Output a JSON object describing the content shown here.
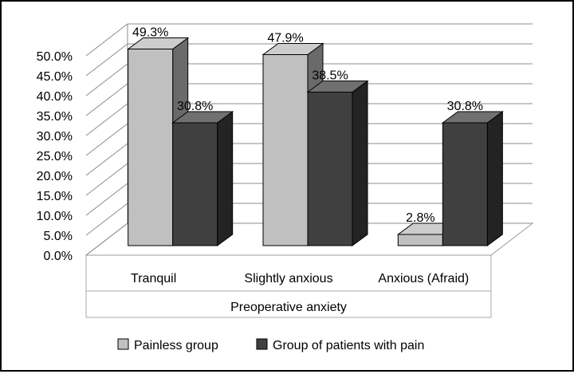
{
  "chart_data": {
    "type": "bar",
    "style": "3d-clustered-column",
    "categories": [
      "Tranquil",
      "Slightly anxious",
      "Anxious (Afraid)"
    ],
    "series": [
      {
        "name": "Painless group",
        "values": [
          49.3,
          47.9,
          2.8
        ],
        "labels": [
          "49.3%",
          "47.9%",
          "2.8%"
        ],
        "color": "#c0c0c0"
      },
      {
        "name": "Group of patients with pain",
        "values": [
          30.8,
          38.5,
          30.8
        ],
        "labels": [
          "30.8%",
          "38.5%",
          "30.8%"
        ],
        "color": "#404040"
      }
    ],
    "xlabel": "Preoperative anxiety",
    "ylabel": "",
    "ylim": [
      0,
      50
    ],
    "yticks": [
      "0.0%",
      "5.0%",
      "10.0%",
      "15.0%",
      "20.0%",
      "25.0%",
      "30.0%",
      "35.0%",
      "40.0%",
      "45.0%",
      "50.0%"
    ],
    "grid": true,
    "legend_position": "bottom"
  }
}
